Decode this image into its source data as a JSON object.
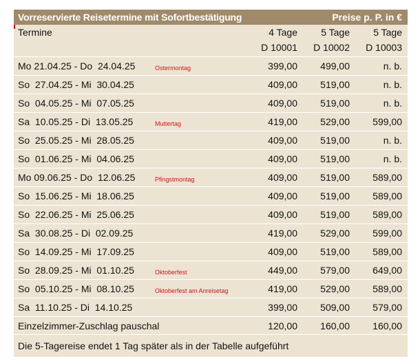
{
  "title": "Vorreservierte Reisetermine mit Sofortbestätigung",
  "price_note": "Preise p. P. in €",
  "header": {
    "termine": "Termine",
    "col1": {
      "days": "4 Tage",
      "code": "D 10001"
    },
    "col2": {
      "days": "5 Tage",
      "code": "D 10002"
    },
    "col3": {
      "days": "5 Tage",
      "code": "D 10003"
    }
  },
  "rows": [
    {
      "dates": "Mo 21.04.25 - Do  24.04.25",
      "note": "Ostermontag",
      "p1": "399,00",
      "p2": "499,00",
      "p3": "n. b."
    },
    {
      "dates": "So  27.04.25 - Mi  30.04.25",
      "note": "",
      "p1": "409,00",
      "p2": "519,00",
      "p3": "n. b."
    },
    {
      "dates": "So  04.05.25 - Mi  07.05.25",
      "note": "",
      "p1": "409,00",
      "p2": "519,00",
      "p3": "n. b."
    },
    {
      "dates": "Sa  10.05.25 - Di  13.05.25",
      "note": "Muttertag",
      "p1": "419,00",
      "p2": "529,00",
      "p3": "599,00"
    },
    {
      "dates": "So  25.05.25 - Mi  28.05.25",
      "note": "",
      "p1": "409,00",
      "p2": "519,00",
      "p3": "n. b."
    },
    {
      "dates": "So  01.06.25 - Mi  04.06.25",
      "note": "",
      "p1": "409,00",
      "p2": "519,00",
      "p3": "n. b."
    },
    {
      "dates": "Mo 09.06.25 - Do  12.06.25",
      "note": "Pfingstmontag",
      "p1": "409,00",
      "p2": "519,00",
      "p3": "589,00"
    },
    {
      "dates": "So  15.06.25 - Mi  18.06.25",
      "note": "",
      "p1": "409,00",
      "p2": "519,00",
      "p3": "589,00"
    },
    {
      "dates": "So  22.06.25 - Mi  25.06.25",
      "note": "",
      "p1": "409,00",
      "p2": "519,00",
      "p3": "589,00"
    },
    {
      "dates": "Sa  30.08.25 - Di  02.09.25",
      "note": "",
      "p1": "419,00",
      "p2": "529,00",
      "p3": "599,00"
    },
    {
      "dates": "So  14.09.25 - Mi  17.09.25",
      "note": "",
      "p1": "409,00",
      "p2": "519,00",
      "p3": "589,00"
    },
    {
      "dates": "So  28.09.25 - Mi  01.10.25",
      "note": "Oktoberfest",
      "p1": "449,00",
      "p2": "579,00",
      "p3": "649,00"
    },
    {
      "dates": "So  05.10.25 - Mi  08.10.25",
      "note": "Oktoberfest am Anreisetag",
      "p1": "419,00",
      "p2": "529,00",
      "p3": "589,00"
    },
    {
      "dates": "Sa  11.10.25 - Di  14.10.25",
      "note": "",
      "p1": "399,00",
      "p2": "509,00",
      "p3": "579,00"
    },
    {
      "dates": "Einzelzimmer-Zuschlag pauschal",
      "note": "",
      "p1": "120,00",
      "p2": "160,00",
      "p3": "160,00"
    }
  ],
  "footnote": "Die 5-Tagereise endet 1 Tag später als in der Tabelle aufgeführt"
}
